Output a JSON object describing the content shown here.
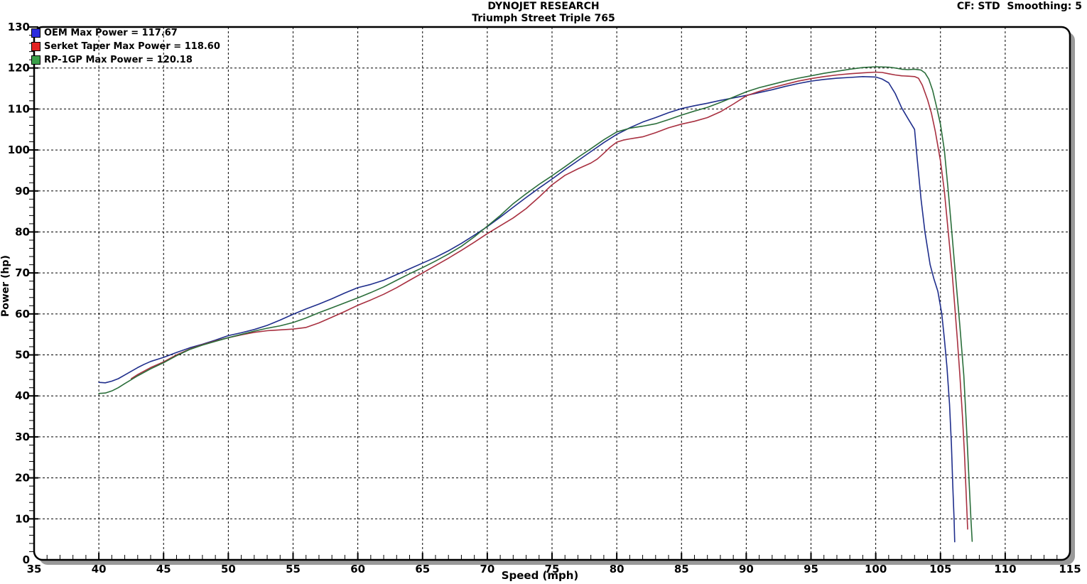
{
  "header": {
    "title": "DYNOJET RESEARCH",
    "subtitle": "Triumph Street Triple 765",
    "settings": "CF: STD  Smoothing: 5"
  },
  "chart_data": {
    "type": "line",
    "title": "DYNOJET RESEARCH",
    "subtitle": "Triumph Street Triple 765",
    "xlabel": "Speed (mph)",
    "ylabel": "Power (hp)",
    "xlim": [
      35,
      115
    ],
    "ylim": [
      0,
      130
    ],
    "x_tick_labels": [
      35,
      40,
      45,
      50,
      55,
      60,
      65,
      70,
      75,
      80,
      85,
      90,
      95,
      100,
      105,
      110,
      115
    ],
    "y_tick_labels": [
      0,
      10,
      20,
      30,
      40,
      50,
      60,
      70,
      80,
      90,
      100,
      110,
      120,
      130
    ],
    "x_minor_step": 1,
    "y_minor_step": 2,
    "grid": "dashed",
    "grid_color": "#000000",
    "frame_color": "#000000",
    "shadow_color": "#999999",
    "legend_position": "top-left",
    "series": [
      {
        "name": "OEM",
        "label": "OEM Max Power = 117.67",
        "max_power": 117.67,
        "color": "#1f2e8c",
        "swatch": "#2b2bdd",
        "points": [
          [
            40,
            43.3
          ],
          [
            40.5,
            43.2
          ],
          [
            41,
            43.6
          ],
          [
            41.5,
            44.2
          ],
          [
            42,
            45.1
          ],
          [
            43,
            46.9
          ],
          [
            43.5,
            47.7
          ],
          [
            44,
            48.4
          ],
          [
            45,
            49.4
          ],
          [
            46,
            50.6
          ],
          [
            47,
            51.7
          ],
          [
            48,
            52.6
          ],
          [
            49,
            53.6
          ],
          [
            50,
            54.7
          ],
          [
            51,
            55.4
          ],
          [
            52,
            56.2
          ],
          [
            53,
            57.2
          ],
          [
            54,
            58.5
          ],
          [
            55,
            59.9
          ],
          [
            56,
            61.2
          ],
          [
            57,
            62.4
          ],
          [
            58,
            63.7
          ],
          [
            59,
            65.1
          ],
          [
            60,
            66.4
          ],
          [
            61,
            67.2
          ],
          [
            62,
            68.2
          ],
          [
            63,
            69.6
          ],
          [
            64,
            71.0
          ],
          [
            65,
            72.4
          ],
          [
            66,
            73.8
          ],
          [
            67,
            75.4
          ],
          [
            68,
            77.2
          ],
          [
            69,
            79.2
          ],
          [
            70,
            81.3
          ],
          [
            71,
            83.6
          ],
          [
            72,
            86.0
          ],
          [
            73,
            88.4
          ],
          [
            74,
            90.7
          ],
          [
            75,
            92.9
          ],
          [
            76,
            95.2
          ],
          [
            77,
            97.4
          ],
          [
            78,
            99.6
          ],
          [
            79,
            101.8
          ],
          [
            80,
            103.8
          ],
          [
            81,
            105.4
          ],
          [
            82,
            106.8
          ],
          [
            83,
            107.9
          ],
          [
            84,
            109.1
          ],
          [
            85,
            110.1
          ],
          [
            86,
            110.8
          ],
          [
            87,
            111.4
          ],
          [
            88,
            112.1
          ],
          [
            89,
            112.7
          ],
          [
            90,
            113.3
          ],
          [
            91,
            114.0
          ],
          [
            92,
            114.7
          ],
          [
            93,
            115.5
          ],
          [
            94,
            116.2
          ],
          [
            95,
            116.8
          ],
          [
            96,
            117.2
          ],
          [
            97,
            117.5
          ],
          [
            98,
            117.7
          ],
          [
            99,
            117.9
          ],
          [
            100,
            117.8
          ],
          [
            100.5,
            117.3
          ],
          [
            101,
            116.4
          ],
          [
            101.5,
            113.8
          ],
          [
            102,
            110.3
          ],
          [
            102.5,
            107.6
          ],
          [
            103,
            105.0
          ],
          [
            103.2,
            98
          ],
          [
            103.5,
            88
          ],
          [
            103.8,
            80
          ],
          [
            104.2,
            72
          ],
          [
            104.5,
            68.5
          ],
          [
            104.8,
            65.5
          ],
          [
            105.1,
            60
          ],
          [
            105.3,
            54
          ],
          [
            105.5,
            47
          ],
          [
            105.7,
            38
          ],
          [
            105.85,
            28
          ],
          [
            105.95,
            18
          ],
          [
            106.05,
            10
          ],
          [
            106.1,
            4.4
          ]
        ]
      },
      {
        "name": "Serket Taper",
        "label": "Serket Taper Max Power = 118.60",
        "max_power": 118.6,
        "color": "#a83040",
        "swatch": "#e32222",
        "points": [
          [
            42.5,
            44.2
          ],
          [
            43,
            45.2
          ],
          [
            44,
            46.9
          ],
          [
            45,
            48.3
          ],
          [
            46,
            50.0
          ],
          [
            47,
            51.4
          ],
          [
            48,
            52.5
          ],
          [
            49,
            53.4
          ],
          [
            50,
            54.2
          ],
          [
            51,
            54.9
          ],
          [
            52,
            55.5
          ],
          [
            53,
            55.9
          ],
          [
            54,
            56.1
          ],
          [
            55,
            56.3
          ],
          [
            56,
            56.7
          ],
          [
            57,
            57.8
          ],
          [
            58,
            59.2
          ],
          [
            59,
            60.6
          ],
          [
            60,
            62.1
          ],
          [
            61,
            63.4
          ],
          [
            62,
            64.8
          ],
          [
            63,
            66.4
          ],
          [
            64,
            68.2
          ],
          [
            65,
            70.0
          ],
          [
            66,
            71.8
          ],
          [
            67,
            73.6
          ],
          [
            68,
            75.5
          ],
          [
            69,
            77.5
          ],
          [
            70,
            79.6
          ],
          [
            71,
            81.5
          ],
          [
            72,
            83.4
          ],
          [
            73,
            85.7
          ],
          [
            74,
            88.5
          ],
          [
            75,
            91.5
          ],
          [
            76,
            93.8
          ],
          [
            77,
            95.4
          ],
          [
            78,
            96.8
          ],
          [
            78.5,
            97.8
          ],
          [
            79,
            99.2
          ],
          [
            79.5,
            100.7
          ],
          [
            80,
            101.9
          ],
          [
            80.5,
            102.4
          ],
          [
            81,
            102.7
          ],
          [
            82,
            103.2
          ],
          [
            83,
            104.2
          ],
          [
            84,
            105.4
          ],
          [
            85,
            106.3
          ],
          [
            86,
            107.0
          ],
          [
            87,
            107.9
          ],
          [
            88,
            109.3
          ],
          [
            89,
            111.2
          ],
          [
            90,
            113.2
          ],
          [
            91,
            114.3
          ],
          [
            92,
            115.2
          ],
          [
            93,
            116.0
          ],
          [
            94,
            116.8
          ],
          [
            95,
            117.4
          ],
          [
            96,
            117.9
          ],
          [
            97,
            118.3
          ],
          [
            98,
            118.6
          ],
          [
            99,
            118.8
          ],
          [
            100,
            119.0
          ],
          [
            100.5,
            118.9
          ],
          [
            101,
            118.6
          ],
          [
            101.5,
            118.3
          ],
          [
            102,
            118.1
          ],
          [
            102.5,
            118.0
          ],
          [
            103,
            117.9
          ],
          [
            103.3,
            117.5
          ],
          [
            103.6,
            115.8
          ],
          [
            104,
            112.3
          ],
          [
            104.3,
            109.0
          ],
          [
            104.6,
            104.5
          ],
          [
            105,
            97.3
          ],
          [
            105.3,
            90
          ],
          [
            105.6,
            80
          ],
          [
            105.9,
            70
          ],
          [
            106.1,
            62
          ],
          [
            106.3,
            54
          ],
          [
            106.5,
            45
          ],
          [
            106.7,
            35
          ],
          [
            106.85,
            26
          ],
          [
            107,
            15
          ],
          [
            107.1,
            7.5
          ]
        ]
      },
      {
        "name": "RP-1GP",
        "label": "RP-1GP Max Power = 120.18",
        "max_power": 120.18,
        "color": "#2a6e3a",
        "swatch": "#3ba04a",
        "points": [
          [
            40,
            40.6
          ],
          [
            40.5,
            40.7
          ],
          [
            41,
            41.2
          ],
          [
            41.5,
            42.0
          ],
          [
            42,
            43.0
          ],
          [
            43,
            44.9
          ],
          [
            44,
            46.6
          ],
          [
            45,
            48.1
          ],
          [
            46,
            49.8
          ],
          [
            47,
            51.3
          ],
          [
            48,
            52.4
          ],
          [
            49,
            53.3
          ],
          [
            50,
            54.2
          ],
          [
            51,
            55.0
          ],
          [
            52,
            55.8
          ],
          [
            53,
            56.5
          ],
          [
            54,
            57.1
          ],
          [
            55,
            57.9
          ],
          [
            56,
            59.0
          ],
          [
            57,
            60.3
          ],
          [
            58,
            61.5
          ],
          [
            59,
            62.7
          ],
          [
            60,
            63.9
          ],
          [
            61,
            65.2
          ],
          [
            62,
            66.6
          ],
          [
            63,
            68.2
          ],
          [
            64,
            69.8
          ],
          [
            65,
            71.3
          ],
          [
            66,
            72.9
          ],
          [
            67,
            74.6
          ],
          [
            68,
            76.5
          ],
          [
            69,
            78.8
          ],
          [
            70,
            81.4
          ],
          [
            71,
            84.0
          ],
          [
            72,
            86.9
          ],
          [
            73,
            89.3
          ],
          [
            74,
            91.6
          ],
          [
            75,
            93.7
          ],
          [
            76,
            95.9
          ],
          [
            77,
            98.2
          ],
          [
            78,
            100.3
          ],
          [
            79,
            102.5
          ],
          [
            80,
            104.4
          ],
          [
            81,
            105.3
          ],
          [
            82,
            105.8
          ],
          [
            83,
            106.4
          ],
          [
            84,
            107.4
          ],
          [
            85,
            108.5
          ],
          [
            86,
            109.5
          ],
          [
            87,
            110.4
          ],
          [
            88,
            111.6
          ],
          [
            89,
            112.9
          ],
          [
            90,
            114.2
          ],
          [
            91,
            115.2
          ],
          [
            92,
            116.0
          ],
          [
            93,
            116.8
          ],
          [
            94,
            117.5
          ],
          [
            95,
            118.1
          ],
          [
            96,
            118.7
          ],
          [
            97,
            119.2
          ],
          [
            98,
            119.7
          ],
          [
            99,
            120.1
          ],
          [
            100,
            120.3
          ],
          [
            101,
            120.2
          ],
          [
            101.5,
            120.0
          ],
          [
            102,
            119.7
          ],
          [
            102.5,
            119.6
          ],
          [
            103,
            119.7
          ],
          [
            103.5,
            119.5
          ],
          [
            103.8,
            118.8
          ],
          [
            104.1,
            117.3
          ],
          [
            104.4,
            114.5
          ],
          [
            104.7,
            110.5
          ],
          [
            105,
            106.2
          ],
          [
            105.3,
            100
          ],
          [
            105.6,
            90
          ],
          [
            105.9,
            79
          ],
          [
            106.2,
            68
          ],
          [
            106.5,
            57
          ],
          [
            106.8,
            45
          ],
          [
            107,
            33
          ],
          [
            107.2,
            20
          ],
          [
            107.35,
            10
          ],
          [
            107.45,
            4.5
          ]
        ]
      }
    ]
  }
}
